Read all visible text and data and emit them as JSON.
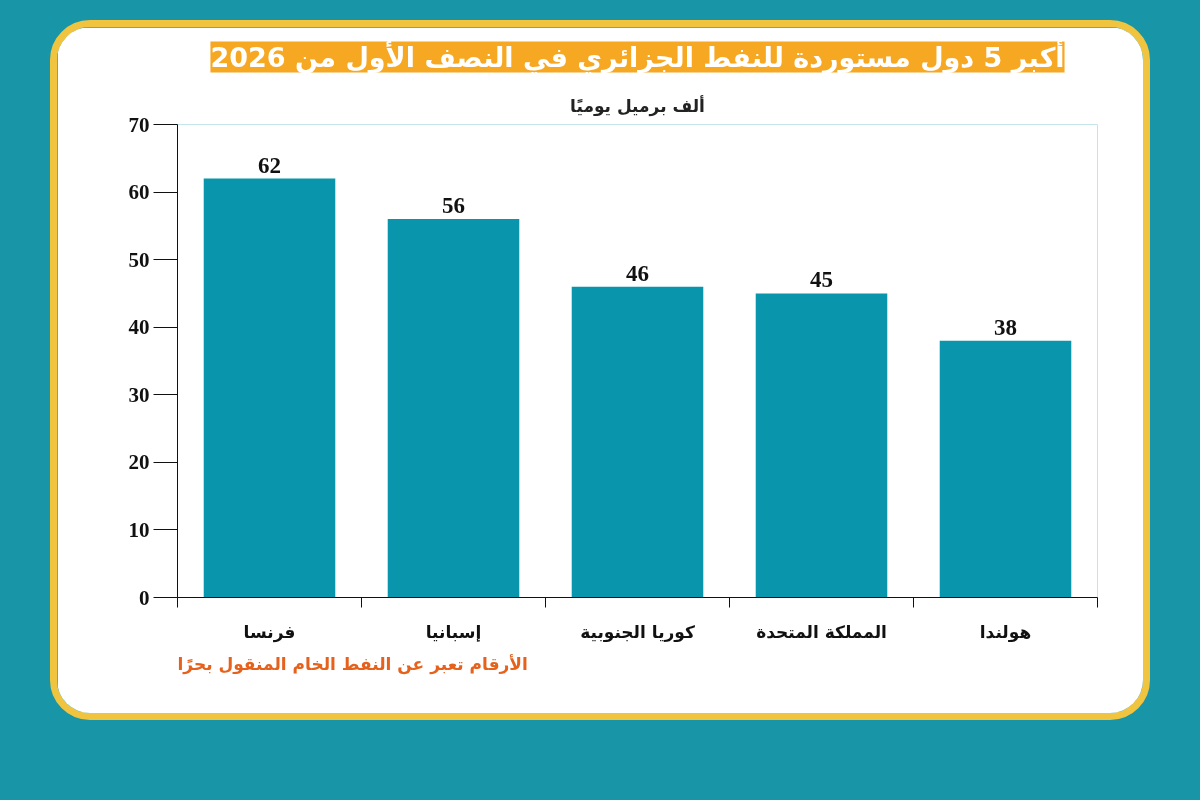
{
  "chart_data": {
    "type": "bar",
    "title": "أكبر 5 دول مستوردة للنفط الجزائري في النصف الأول من 2026",
    "ylabel": "ألف برميل يوميًا",
    "categories": [
      "فرنسا",
      "إسبانيا",
      "كوريا الجنوبية",
      "المملكة المتحدة",
      "هولندا"
    ],
    "values": [
      62,
      56,
      46,
      45,
      38
    ],
    "color": "#0995ab",
    "ylim": [
      0,
      70
    ],
    "yticks": [
      0,
      10,
      20,
      30,
      40,
      50,
      60,
      70
    ],
    "data_labels": true,
    "grid": false,
    "annotations": [
      "الأرقام تعبر عن النفط الخام المنقول بحرًا"
    ]
  }
}
